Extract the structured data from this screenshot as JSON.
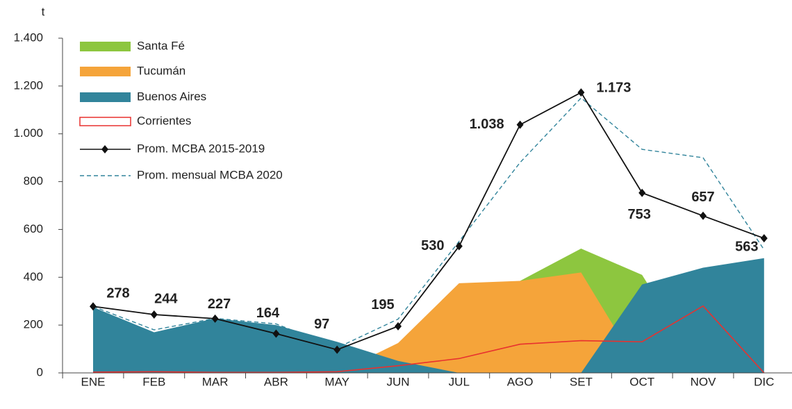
{
  "chart_data": {
    "type": "area_line",
    "y_axis_label": "t",
    "categories": [
      "ENE",
      "FEB",
      "MAR",
      "ABR",
      "MAY",
      "JUN",
      "JUL",
      "AGO",
      "SET",
      "OCT",
      "NOV",
      "DIC"
    ],
    "ylim": [
      0,
      1400
    ],
    "yticks": [
      0,
      200,
      400,
      600,
      800,
      {
        "value": 1000,
        "label": "1.000"
      },
      {
        "value": 1200,
        "label": "1.200"
      },
      {
        "value": 1400,
        "label": "1.400"
      }
    ],
    "series": [
      {
        "name": "Santa Fé",
        "kind": "area",
        "color": "#8dc63f",
        "values": [
          0,
          0,
          0,
          0,
          0,
          0,
          0,
          385,
          520,
          410,
          0,
          0
        ]
      },
      {
        "name": "Tucumán",
        "kind": "area",
        "color": "#f5a43a",
        "values": [
          0,
          0,
          0,
          0,
          0,
          125,
          375,
          385,
          420,
          0,
          0,
          0
        ]
      },
      {
        "name": "Buenos Aires",
        "kind": "area",
        "color": "#31849b",
        "values": [
          275,
          170,
          228,
          200,
          130,
          50,
          0,
          0,
          0,
          370,
          440,
          480
        ]
      },
      {
        "name": "Corrientes",
        "kind": "line",
        "color": "#e8312f",
        "values": [
          3,
          5,
          2,
          2,
          5,
          30,
          60,
          120,
          135,
          130,
          280,
          0
        ]
      },
      {
        "name": "Prom. MCBA 2015-2019",
        "kind": "marker_line",
        "color": "#111111",
        "values": [
          278,
          244,
          227,
          164,
          97,
          195,
          530,
          1038,
          1173,
          753,
          657,
          563
        ],
        "value_labels": [
          "278",
          "244",
          "227",
          "164",
          "97",
          "195",
          "530",
          "1.038",
          "1.173",
          "753",
          "657",
          "563"
        ]
      },
      {
        "name": "Prom. mensual MCBA 2020",
        "kind": "dashed_line",
        "color": "#31849b",
        "values": [
          278,
          180,
          228,
          205,
          105,
          225,
          550,
          880,
          1150,
          935,
          900,
          515
        ]
      }
    ]
  }
}
